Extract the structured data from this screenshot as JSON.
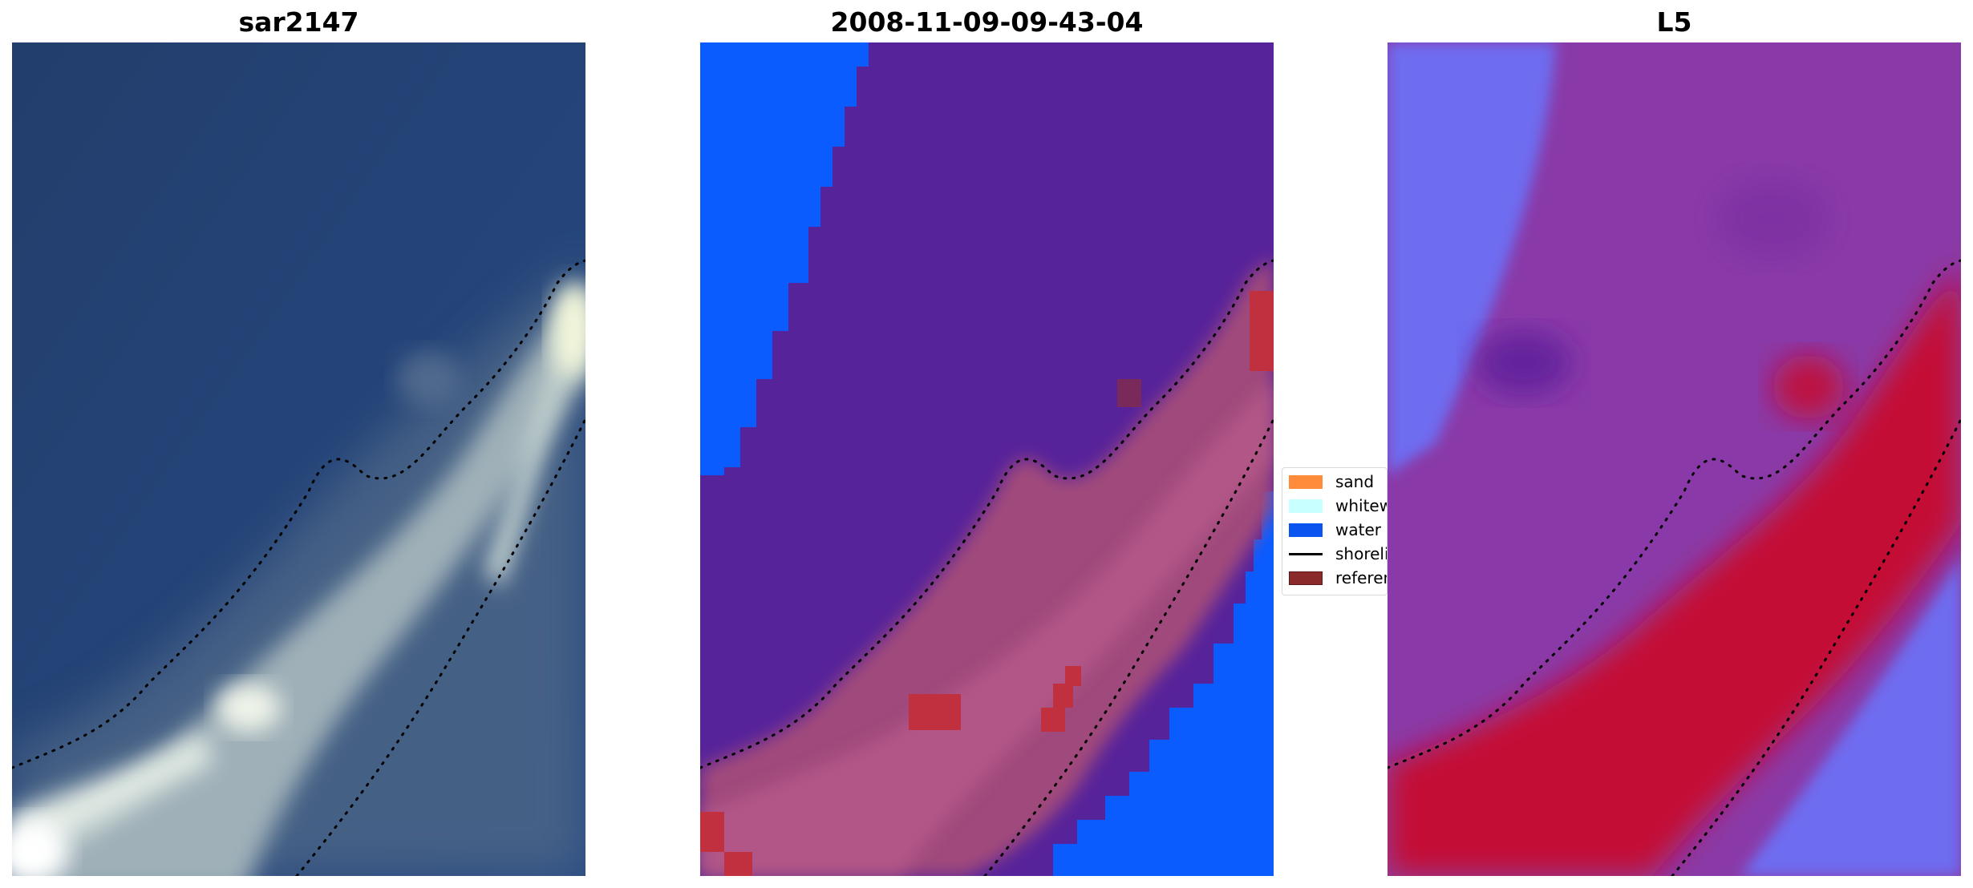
{
  "panels": [
    {
      "title": "sar2147"
    },
    {
      "title": "2008-11-09-09-43-04"
    },
    {
      "title": "L5"
    }
  ],
  "legend": {
    "items": [
      {
        "label": "sand",
        "color": "#ff8c3a",
        "kind": "patch"
      },
      {
        "label": "whitewater",
        "color": "#c8ffff",
        "kind": "patch"
      },
      {
        "label": "water",
        "color": "#0a55f0",
        "kind": "patch"
      },
      {
        "label": "shoreline",
        "color": "#000000",
        "kind": "line"
      },
      {
        "label": "reference",
        "color": "#8b2a2a",
        "kind": "patch"
      }
    ]
  },
  "colors": {
    "rgb_water": "#23406f",
    "rgb_surf": "#c8d4cc",
    "class_water": "#0a5cff",
    "class_land": "#57239a",
    "class_sand_overlay": "#b04a78",
    "class_reference": "#c0303f",
    "index_low": "#6e6cf0",
    "index_mid": "#8a3aa8",
    "index_high": "#c40a36"
  }
}
